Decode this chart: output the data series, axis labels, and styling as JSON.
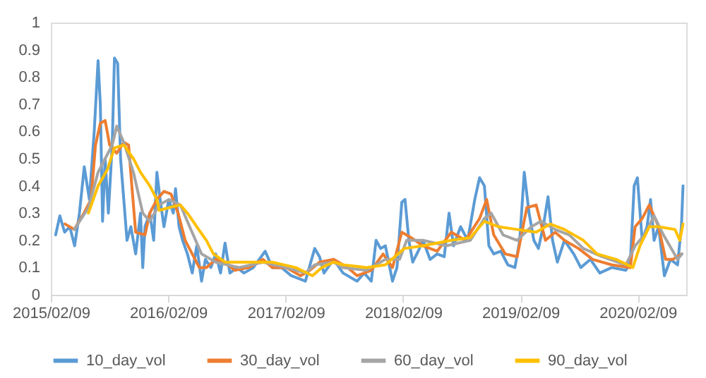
{
  "chart_data": {
    "type": "line",
    "ylim": [
      0,
      1
    ],
    "yticks": [
      0,
      0.1,
      0.2,
      0.3,
      0.4,
      0.5,
      0.6,
      0.7,
      0.8,
      0.9,
      1
    ],
    "xlim": [
      "2015-02-09",
      "2020-07-09"
    ],
    "xticks": [
      {
        "value": "2015-02-09",
        "label": "2015/02/09"
      },
      {
        "value": "2016-02-09",
        "label": "2016/02/09"
      },
      {
        "value": "2017-02-09",
        "label": "2017/02/09"
      },
      {
        "value": "2018-02-09",
        "label": "2018/02/09"
      },
      {
        "value": "2019-02-09",
        "label": "2019/02/09"
      },
      {
        "value": "2020-02-09",
        "label": "2020/02/09"
      }
    ],
    "grid": false,
    "legend": "bottom",
    "marker": "none",
    "line_style": "solid",
    "series": [
      {
        "name": "10_day_vol",
        "color": "#5b9bd5",
        "x": [
          "2015-02-24",
          "2015-03-09",
          "2015-03-24",
          "2015-04-09",
          "2015-04-24",
          "2015-05-09",
          "2015-05-24",
          "2015-06-09",
          "2015-06-24",
          "2015-07-06",
          "2015-07-13",
          "2015-07-20",
          "2015-07-28",
          "2015-08-07",
          "2015-08-19",
          "2015-08-26",
          "2015-09-05",
          "2015-09-14",
          "2015-09-24",
          "2015-10-04",
          "2015-10-16",
          "2015-10-31",
          "2015-11-15",
          "2015-11-22",
          "2015-11-29",
          "2015-12-14",
          "2015-12-26",
          "2016-01-05",
          "2016-01-15",
          "2016-01-27",
          "2016-02-11",
          "2016-02-25",
          "2016-03-03",
          "2016-03-14",
          "2016-03-25",
          "2016-04-09",
          "2016-04-24",
          "2016-05-08",
          "2016-05-23",
          "2016-06-04",
          "2016-06-21",
          "2016-07-06",
          "2016-07-21",
          "2016-08-04",
          "2016-08-19",
          "2016-09-10",
          "2016-10-02",
          "2016-10-31",
          "2016-12-07",
          "2016-12-29",
          "2017-01-27",
          "2017-02-26",
          "2017-04-11",
          "2017-05-10",
          "2017-05-25",
          "2017-06-08",
          "2017-07-08",
          "2017-08-06",
          "2017-09-19",
          "2017-10-11",
          "2017-11-02",
          "2017-11-17",
          "2017-12-01",
          "2017-12-16",
          "2018-01-07",
          "2018-01-21",
          "2018-02-05",
          "2018-02-15",
          "2018-02-27",
          "2018-03-11",
          "2018-03-28",
          "2018-04-12",
          "2018-05-04",
          "2018-05-26",
          "2018-06-17",
          "2018-07-02",
          "2018-07-16",
          "2018-08-07",
          "2018-08-29",
          "2018-09-20",
          "2018-10-05",
          "2018-10-20",
          "2018-11-03",
          "2018-11-18",
          "2018-12-10",
          "2019-01-01",
          "2019-01-23",
          "2019-02-07",
          "2019-02-21",
          "2019-03-08",
          "2019-03-23",
          "2019-04-06",
          "2019-04-21",
          "2019-05-06",
          "2019-05-20",
          "2019-06-04",
          "2019-06-26",
          "2019-07-25",
          "2019-08-16",
          "2019-09-15",
          "2019-10-14",
          "2019-11-20",
          "2020-01-03",
          "2020-01-17",
          "2020-01-29",
          "2020-02-08",
          "2020-02-23",
          "2020-03-09",
          "2020-03-20",
          "2020-03-31",
          "2020-04-14",
          "2020-05-02",
          "2020-05-21",
          "2020-06-12",
          "2020-06-24",
          "2020-06-29"
        ],
        "values": [
          0.22,
          0.29,
          0.23,
          0.25,
          0.18,
          0.3,
          0.47,
          0.35,
          0.6,
          0.86,
          0.7,
          0.27,
          0.5,
          0.3,
          0.55,
          0.87,
          0.85,
          0.5,
          0.35,
          0.2,
          0.25,
          0.15,
          0.3,
          0.1,
          0.25,
          0.3,
          0.2,
          0.45,
          0.35,
          0.25,
          0.35,
          0.3,
          0.39,
          0.25,
          0.2,
          0.15,
          0.08,
          0.18,
          0.05,
          0.13,
          0.1,
          0.15,
          0.08,
          0.19,
          0.08,
          0.1,
          0.08,
          0.1,
          0.16,
          0.1,
          0.1,
          0.07,
          0.05,
          0.17,
          0.14,
          0.08,
          0.13,
          0.08,
          0.05,
          0.08,
          0.05,
          0.2,
          0.17,
          0.18,
          0.05,
          0.1,
          0.34,
          0.35,
          0.2,
          0.12,
          0.16,
          0.2,
          0.13,
          0.15,
          0.14,
          0.3,
          0.18,
          0.25,
          0.2,
          0.35,
          0.43,
          0.4,
          0.18,
          0.15,
          0.16,
          0.11,
          0.1,
          0.2,
          0.45,
          0.3,
          0.2,
          0.17,
          0.25,
          0.36,
          0.2,
          0.12,
          0.2,
          0.15,
          0.1,
          0.13,
          0.08,
          0.1,
          0.09,
          0.12,
          0.4,
          0.43,
          0.2,
          0.25,
          0.35,
          0.2,
          0.25,
          0.07,
          0.13,
          0.11,
          0.25,
          0.4
        ]
      },
      {
        "name": "30_day_vol",
        "color": "#ed7d31",
        "x": [
          "2015-03-25",
          "2015-04-23",
          "2015-05-23",
          "2015-06-14",
          "2015-06-28",
          "2015-07-13",
          "2015-07-28",
          "2015-08-11",
          "2015-09-02",
          "2015-09-24",
          "2015-10-09",
          "2015-10-19",
          "2015-10-31",
          "2015-11-29",
          "2015-12-14",
          "2016-01-05",
          "2016-01-27",
          "2016-02-18",
          "2016-03-11",
          "2016-04-02",
          "2016-04-24",
          "2016-05-16",
          "2016-06-07",
          "2016-07-06",
          "2016-08-04",
          "2016-09-03",
          "2016-10-17",
          "2016-11-30",
          "2016-12-29",
          "2017-02-11",
          "2017-03-27",
          "2017-04-25",
          "2017-05-25",
          "2017-07-08",
          "2017-08-21",
          "2017-09-19",
          "2017-11-02",
          "2017-12-09",
          "2018-01-07",
          "2018-02-05",
          "2018-03-06",
          "2018-04-12",
          "2018-05-26",
          "2018-07-09",
          "2018-08-22",
          "2018-10-05",
          "2018-10-27",
          "2018-11-18",
          "2018-12-24",
          "2019-01-30",
          "2019-03-01",
          "2019-03-30",
          "2019-04-28",
          "2019-05-28",
          "2019-06-26",
          "2019-08-09",
          "2019-09-22",
          "2019-11-20",
          "2020-01-17",
          "2020-02-01",
          "2020-02-23",
          "2020-03-16",
          "2020-04-14",
          "2020-05-06",
          "2020-05-28",
          "2020-06-24"
        ],
        "values": [
          0.26,
          0.24,
          0.3,
          0.35,
          0.55,
          0.63,
          0.64,
          0.55,
          0.52,
          0.56,
          0.55,
          0.4,
          0.23,
          0.22,
          0.3,
          0.35,
          0.38,
          0.37,
          0.3,
          0.2,
          0.15,
          0.1,
          0.1,
          0.13,
          0.12,
          0.09,
          0.1,
          0.13,
          0.1,
          0.1,
          0.07,
          0.09,
          0.12,
          0.13,
          0.1,
          0.07,
          0.09,
          0.15,
          0.1,
          0.23,
          0.21,
          0.18,
          0.16,
          0.23,
          0.2,
          0.28,
          0.35,
          0.22,
          0.15,
          0.14,
          0.32,
          0.33,
          0.2,
          0.23,
          0.2,
          0.17,
          0.13,
          0.11,
          0.1,
          0.25,
          0.28,
          0.33,
          0.25,
          0.13,
          0.13,
          0.15
        ]
      },
      {
        "name": "60_day_vol",
        "color": "#a5a5a5",
        "x": [
          "2015-04-23",
          "2015-06-06",
          "2015-07-06",
          "2015-07-28",
          "2015-08-19",
          "2015-09-02",
          "2015-09-24",
          "2015-10-24",
          "2015-11-22",
          "2015-12-14",
          "2016-01-12",
          "2016-02-11",
          "2016-03-18",
          "2016-04-16",
          "2016-05-23",
          "2016-07-06",
          "2016-09-17",
          "2016-11-30",
          "2017-02-11",
          "2017-04-11",
          "2017-05-10",
          "2017-07-08",
          "2017-08-06",
          "2017-10-18",
          "2017-12-16",
          "2018-01-29",
          "2018-02-20",
          "2018-04-12",
          "2018-06-24",
          "2018-09-06",
          "2018-10-20",
          "2018-11-10",
          "2018-12-17",
          "2019-01-30",
          "2019-03-15",
          "2019-04-14",
          "2019-05-28",
          "2019-07-11",
          "2019-08-24",
          "2019-10-21",
          "2020-01-03",
          "2020-02-01",
          "2020-03-01",
          "2020-03-31",
          "2020-04-29",
          "2020-06-12",
          "2020-06-26"
        ],
        "values": [
          0.24,
          0.32,
          0.45,
          0.5,
          0.55,
          0.62,
          0.56,
          0.45,
          0.3,
          0.27,
          0.33,
          0.35,
          0.33,
          0.25,
          0.15,
          0.12,
          0.1,
          0.12,
          0.1,
          0.08,
          0.11,
          0.12,
          0.1,
          0.09,
          0.13,
          0.13,
          0.2,
          0.2,
          0.18,
          0.2,
          0.28,
          0.3,
          0.22,
          0.2,
          0.25,
          0.27,
          0.24,
          0.22,
          0.17,
          0.14,
          0.11,
          0.18,
          0.22,
          0.29,
          0.22,
          0.13,
          0.15
        ]
      },
      {
        "name": "90_day_vol",
        "color": "#ffc000",
        "x": [
          "2015-06-06",
          "2015-07-06",
          "2015-08-04",
          "2015-08-26",
          "2015-09-24",
          "2015-10-24",
          "2015-11-15",
          "2015-12-14",
          "2016-01-05",
          "2016-01-12",
          "2016-02-11",
          "2016-03-18",
          "2016-04-09",
          "2016-05-08",
          "2016-06-07",
          "2016-06-29",
          "2016-08-04",
          "2016-10-17",
          "2016-12-29",
          "2017-03-12",
          "2017-05-03",
          "2017-06-01",
          "2017-07-08",
          "2017-08-06",
          "2017-10-18",
          "2017-12-16",
          "2018-02-13",
          "2018-04-12",
          "2018-07-09",
          "2018-09-06",
          "2018-10-20",
          "2018-12-03",
          "2019-01-30",
          "2019-03-30",
          "2019-05-13",
          "2019-06-26",
          "2019-08-24",
          "2019-10-06",
          "2019-12-04",
          "2020-01-25",
          "2020-02-16",
          "2020-03-16",
          "2020-04-14",
          "2020-06-04",
          "2020-06-19",
          "2020-06-29"
        ],
        "values": [
          0.3,
          0.4,
          0.46,
          0.54,
          0.55,
          0.5,
          0.45,
          0.4,
          0.35,
          0.31,
          0.32,
          0.33,
          0.3,
          0.25,
          0.2,
          0.15,
          0.12,
          0.12,
          0.12,
          0.1,
          0.07,
          0.1,
          0.12,
          0.11,
          0.1,
          0.11,
          0.17,
          0.18,
          0.2,
          0.21,
          0.27,
          0.25,
          0.24,
          0.23,
          0.26,
          0.24,
          0.2,
          0.15,
          0.13,
          0.1,
          0.18,
          0.25,
          0.25,
          0.24,
          0.2,
          0.26
        ]
      }
    ]
  }
}
